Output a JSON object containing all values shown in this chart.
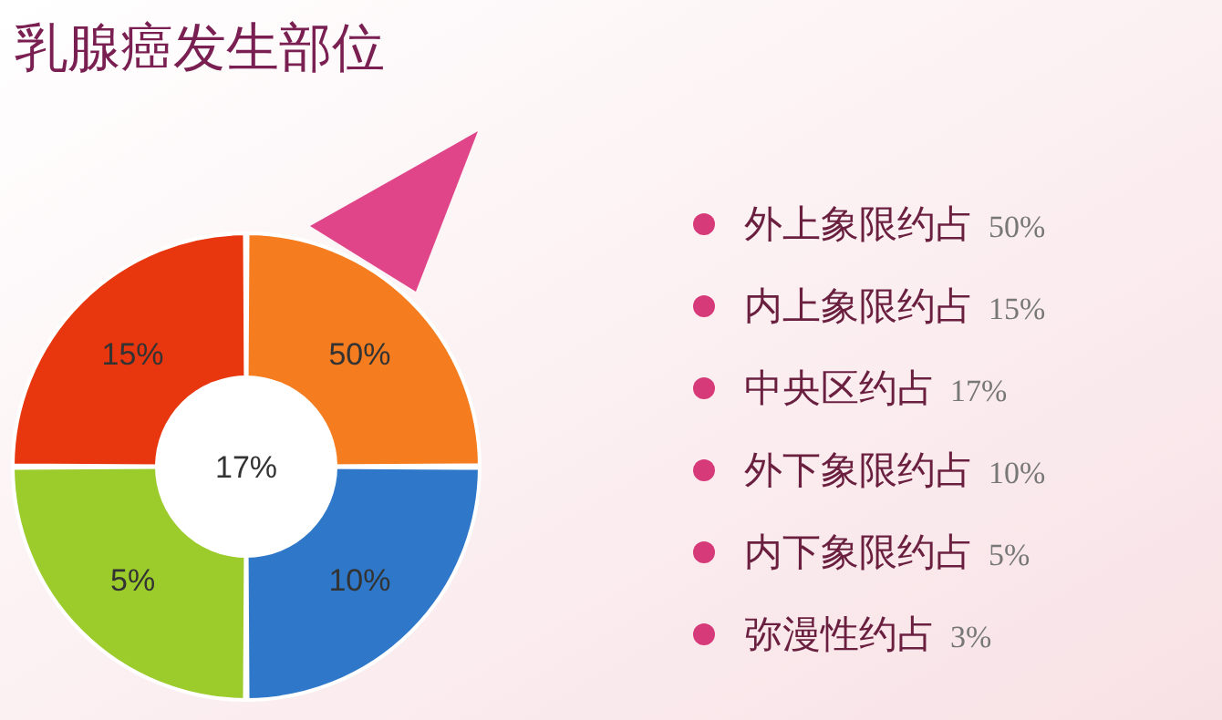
{
  "chart_data": {
    "type": "other",
    "title": "乳腺癌发生部位",
    "categories": [
      "外上象限约占",
      "内上象限约占",
      "中央区约占",
      "外下象限约占",
      "内下象限约占",
      "弥漫性约占"
    ],
    "values": [
      50,
      15,
      17,
      10,
      5,
      3
    ],
    "value_labels": [
      "50%",
      "15%",
      "17%",
      "10%",
      "5%",
      "3%"
    ],
    "colors": [
      "#f57d1f",
      "#e8360e",
      "#ffffff",
      "#2f78c9",
      "#9ccc2c",
      null
    ]
  }
}
